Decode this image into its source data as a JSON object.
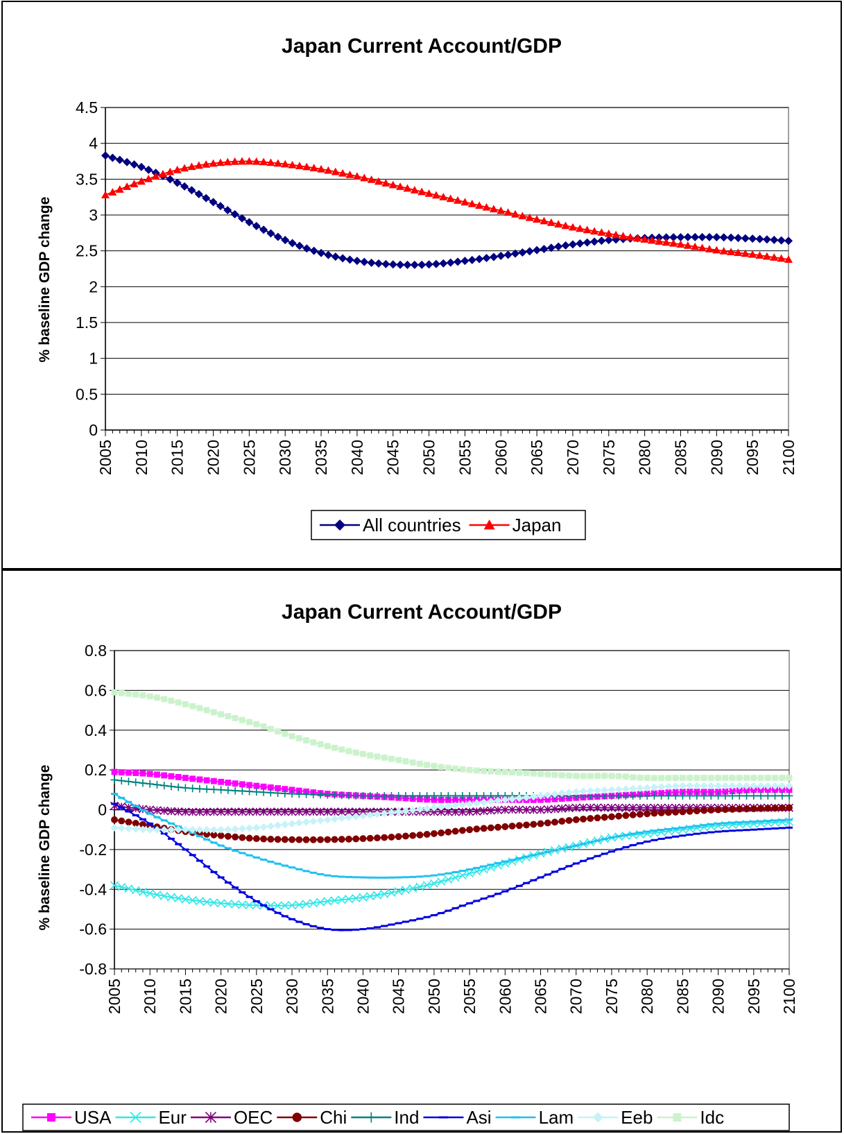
{
  "chart_data": [
    {
      "type": "line",
      "title": "Japan Current Account/GDP",
      "ylabel": "% baseline GDP change",
      "xlabel": "",
      "ylim": [
        0,
        4.5
      ],
      "yticks": [
        "0",
        "0.5",
        "1",
        "1.5",
        "2",
        "2.5",
        "3",
        "3.5",
        "4",
        "4.5"
      ],
      "xlim": [
        2005,
        2100
      ],
      "xticks": [
        "2005",
        "2010",
        "2015",
        "2020",
        "2025",
        "2030",
        "2035",
        "2040",
        "2045",
        "2050",
        "2055",
        "2060",
        "2065",
        "2070",
        "2075",
        "2080",
        "2085",
        "2090",
        "2095",
        "2100"
      ],
      "grid": true,
      "legend": "bottom",
      "series": [
        {
          "name": "All countries",
          "color": "#000080",
          "marker": "diamond",
          "x": [
            2005,
            2010,
            2015,
            2020,
            2025,
            2030,
            2035,
            2040,
            2045,
            2050,
            2055,
            2060,
            2065,
            2070,
            2075,
            2080,
            2085,
            2090,
            2095,
            2100
          ],
          "values": [
            3.83,
            3.67,
            3.45,
            3.18,
            2.9,
            2.65,
            2.47,
            2.36,
            2.31,
            2.31,
            2.36,
            2.43,
            2.51,
            2.59,
            2.65,
            2.68,
            2.69,
            2.69,
            2.67,
            2.64
          ]
        },
        {
          "name": "Japan",
          "color": "#ff0000",
          "marker": "triangle",
          "x": [
            2005,
            2010,
            2015,
            2020,
            2025,
            2030,
            2035,
            2040,
            2045,
            2050,
            2055,
            2060,
            2065,
            2070,
            2075,
            2080,
            2085,
            2090,
            2095,
            2100
          ],
          "values": [
            3.28,
            3.47,
            3.63,
            3.72,
            3.75,
            3.71,
            3.64,
            3.54,
            3.42,
            3.3,
            3.18,
            3.06,
            2.94,
            2.83,
            2.74,
            2.66,
            2.59,
            2.51,
            2.45,
            2.38
          ]
        }
      ]
    },
    {
      "type": "line",
      "title": "Japan Current Account/GDP",
      "ylabel": "% baseline GDP change",
      "xlabel": "",
      "ylim": [
        -0.8,
        0.8
      ],
      "yticks": [
        "-0.8",
        "-0.6",
        "-0.4",
        "-0.2",
        "0",
        "0.2",
        "0.4",
        "0.6",
        "0.8"
      ],
      "xlim": [
        2005,
        2100
      ],
      "xticks": [
        "2005",
        "2010",
        "2015",
        "2020",
        "2025",
        "2030",
        "2035",
        "2040",
        "2045",
        "2050",
        "2055",
        "2060",
        "2065",
        "2070",
        "2075",
        "2080",
        "2085",
        "2090",
        "2095",
        "2100"
      ],
      "grid": true,
      "legend": "bottom",
      "series": [
        {
          "name": "USA",
          "color": "#ff00ff",
          "marker": "square",
          "x": [
            2005,
            2010,
            2015,
            2020,
            2025,
            2030,
            2035,
            2040,
            2045,
            2050,
            2055,
            2060,
            2065,
            2070,
            2075,
            2080,
            2085,
            2090,
            2095,
            2100
          ],
          "values": [
            0.19,
            0.18,
            0.16,
            0.14,
            0.12,
            0.1,
            0.08,
            0.07,
            0.06,
            0.05,
            0.05,
            0.05,
            0.05,
            0.06,
            0.07,
            0.08,
            0.09,
            0.09,
            0.1,
            0.1
          ]
        },
        {
          "name": "Eur",
          "color": "#33e6e6",
          "marker": "x",
          "x": [
            2005,
            2010,
            2015,
            2020,
            2025,
            2030,
            2035,
            2040,
            2045,
            2050,
            2055,
            2060,
            2065,
            2070,
            2075,
            2080,
            2085,
            2090,
            2095,
            2100
          ],
          "values": [
            -0.38,
            -0.42,
            -0.45,
            -0.47,
            -0.48,
            -0.48,
            -0.46,
            -0.44,
            -0.41,
            -0.37,
            -0.32,
            -0.27,
            -0.22,
            -0.18,
            -0.14,
            -0.12,
            -0.1,
            -0.08,
            -0.07,
            -0.06
          ]
        },
        {
          "name": "OEC",
          "color": "#800080",
          "marker": "star",
          "x": [
            2005,
            2010,
            2015,
            2020,
            2025,
            2030,
            2035,
            2040,
            2045,
            2050,
            2055,
            2060,
            2065,
            2070,
            2075,
            2080,
            2085,
            2090,
            2095,
            2100
          ],
          "values": [
            0.02,
            0.0,
            -0.01,
            -0.01,
            -0.01,
            -0.01,
            -0.01,
            -0.01,
            -0.01,
            -0.01,
            -0.01,
            0.0,
            0.0,
            0.01,
            0.01,
            0.01,
            0.01,
            0.01,
            0.01,
            0.01
          ]
        },
        {
          "name": "Chi",
          "color": "#800000",
          "marker": "circle",
          "x": [
            2005,
            2010,
            2015,
            2020,
            2025,
            2030,
            2035,
            2040,
            2045,
            2050,
            2055,
            2060,
            2065,
            2070,
            2075,
            2080,
            2085,
            2090,
            2095,
            2100
          ],
          "values": [
            -0.05,
            -0.08,
            -0.11,
            -0.13,
            -0.145,
            -0.15,
            -0.15,
            -0.145,
            -0.135,
            -0.12,
            -0.1,
            -0.085,
            -0.07,
            -0.05,
            -0.035,
            -0.02,
            -0.01,
            0.0,
            0.005,
            0.01
          ]
        },
        {
          "name": "Ind",
          "color": "#008080",
          "marker": "plus",
          "x": [
            2005,
            2010,
            2015,
            2020,
            2025,
            2030,
            2035,
            2040,
            2045,
            2050,
            2055,
            2060,
            2065,
            2070,
            2075,
            2080,
            2085,
            2090,
            2095,
            2100
          ],
          "values": [
            0.15,
            0.13,
            0.11,
            0.1,
            0.09,
            0.08,
            0.075,
            0.07,
            0.07,
            0.07,
            0.07,
            0.07,
            0.07,
            0.07,
            0.07,
            0.07,
            0.07,
            0.07,
            0.07,
            0.07
          ]
        },
        {
          "name": "Asi",
          "color": "#0000e0",
          "marker": "dash",
          "x": [
            2005,
            2010,
            2015,
            2020,
            2025,
            2030,
            2035,
            2040,
            2045,
            2050,
            2055,
            2060,
            2065,
            2070,
            2075,
            2080,
            2085,
            2090,
            2095,
            2100
          ],
          "values": [
            0.03,
            -0.07,
            -0.2,
            -0.34,
            -0.46,
            -0.55,
            -0.6,
            -0.6,
            -0.57,
            -0.53,
            -0.47,
            -0.41,
            -0.34,
            -0.27,
            -0.21,
            -0.16,
            -0.13,
            -0.11,
            -0.1,
            -0.09
          ]
        },
        {
          "name": "Lam",
          "color": "#20c0f0",
          "marker": "dash",
          "x": [
            2005,
            2010,
            2015,
            2020,
            2025,
            2030,
            2035,
            2040,
            2045,
            2050,
            2055,
            2060,
            2065,
            2070,
            2075,
            2080,
            2085,
            2090,
            2095,
            2100
          ],
          "values": [
            0.08,
            -0.02,
            -0.1,
            -0.18,
            -0.24,
            -0.29,
            -0.33,
            -0.34,
            -0.34,
            -0.33,
            -0.3,
            -0.26,
            -0.22,
            -0.18,
            -0.14,
            -0.11,
            -0.09,
            -0.07,
            -0.06,
            -0.05
          ]
        },
        {
          "name": "Eeb",
          "color": "#c6f2f8",
          "marker": "diamond",
          "x": [
            2005,
            2010,
            2015,
            2020,
            2025,
            2030,
            2035,
            2040,
            2045,
            2050,
            2055,
            2060,
            2065,
            2070,
            2075,
            2080,
            2085,
            2090,
            2095,
            2100
          ],
          "values": [
            -0.09,
            -0.1,
            -0.1,
            -0.1,
            -0.09,
            -0.07,
            -0.05,
            -0.03,
            -0.01,
            0.01,
            0.03,
            0.05,
            0.07,
            0.09,
            0.1,
            0.11,
            0.12,
            0.12,
            0.12,
            0.12
          ]
        },
        {
          "name": "Idc",
          "color": "#ccf2cc",
          "marker": "square",
          "x": [
            2005,
            2010,
            2015,
            2020,
            2025,
            2030,
            2035,
            2040,
            2045,
            2050,
            2055,
            2060,
            2065,
            2070,
            2075,
            2080,
            2085,
            2090,
            2095,
            2100
          ],
          "values": [
            0.59,
            0.57,
            0.53,
            0.48,
            0.43,
            0.37,
            0.32,
            0.28,
            0.25,
            0.22,
            0.2,
            0.19,
            0.18,
            0.17,
            0.17,
            0.16,
            0.16,
            0.16,
            0.16,
            0.16
          ]
        }
      ]
    }
  ]
}
